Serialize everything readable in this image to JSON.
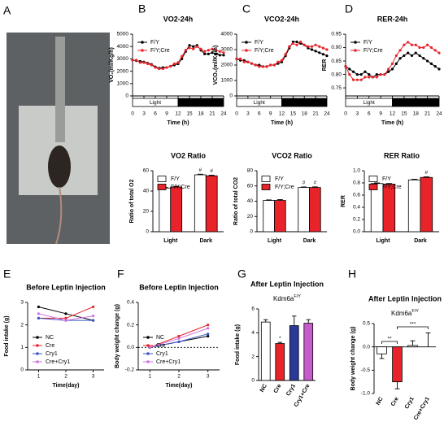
{
  "chart_data": [
    {
      "type": "image",
      "panel": "A"
    },
    {
      "type": "line",
      "panel": "B",
      "title": "VO2-24h",
      "xlabel": "Time (h)",
      "ylabel": "VO₂(ml/Kg/h)",
      "x": [
        0,
        1,
        2,
        3,
        4,
        5,
        6,
        7,
        8,
        9,
        10,
        11,
        12,
        13,
        14,
        15,
        16,
        17,
        18,
        19,
        20,
        21,
        22,
        23,
        24
      ],
      "xlim": [
        0,
        24
      ],
      "xticks": [
        0,
        3,
        6,
        9,
        12,
        15,
        18,
        21,
        24
      ],
      "ylim": [
        0,
        5000
      ],
      "yticks": [
        0,
        1000,
        2000,
        3000,
        4000,
        5000
      ],
      "phases": [
        {
          "label": "Light",
          "start": 0,
          "end": 12,
          "fill": "#ffffff"
        },
        {
          "label": "Dark",
          "start": 12,
          "end": 24,
          "fill": "#000000"
        }
      ],
      "legend": "upper left",
      "series": [
        {
          "name": "F/Y",
          "color": "#000000",
          "values": [
            2900,
            2850,
            2800,
            2750,
            2650,
            2550,
            2350,
            2250,
            2300,
            2300,
            2400,
            2500,
            2600,
            3000,
            3600,
            4100,
            4000,
            4100,
            3700,
            3400,
            3400,
            3500,
            3400,
            3300,
            3300
          ]
        },
        {
          "name": "F/Y;Cre",
          "color": "#e8232a",
          "values": [
            2900,
            2900,
            2700,
            2700,
            2600,
            2500,
            2300,
            2200,
            2200,
            2300,
            2400,
            2600,
            2700,
            3200,
            3700,
            3900,
            3800,
            4000,
            3800,
            3600,
            3700,
            3800,
            3700,
            3600,
            3500
          ]
        }
      ]
    },
    {
      "type": "line",
      "panel": "C",
      "title": "VCO2-24h",
      "xlabel": "Time (h)",
      "ylabel": "VCO₂(ml/Kg/h)",
      "x": [
        0,
        1,
        2,
        3,
        4,
        5,
        6,
        7,
        8,
        9,
        10,
        11,
        12,
        13,
        14,
        15,
        16,
        17,
        18,
        19,
        20,
        21,
        22,
        23,
        24
      ],
      "xlim": [
        0,
        24
      ],
      "xticks": [
        0,
        3,
        6,
        9,
        12,
        15,
        18,
        21,
        24
      ],
      "ylim": [
        0,
        4000
      ],
      "yticks": [
        0,
        1000,
        2000,
        3000,
        4000
      ],
      "phases": [
        {
          "label": "Light",
          "start": 0,
          "end": 12,
          "fill": "#ffffff"
        },
        {
          "label": "Dark",
          "start": 12,
          "end": 24,
          "fill": "#000000"
        }
      ],
      "legend": "upper left",
      "series": [
        {
          "name": "F/Y",
          "color": "#000000",
          "values": [
            2400,
            2300,
            2300,
            2200,
            2100,
            2000,
            2000,
            1900,
            1900,
            2000,
            2000,
            2100,
            2200,
            2600,
            3100,
            3500,
            3500,
            3400,
            3300,
            3100,
            3000,
            2900,
            2800,
            2700,
            2600
          ]
        },
        {
          "name": "F/Y;Cre",
          "color": "#e8232a",
          "values": [
            2400,
            2400,
            2200,
            2200,
            2100,
            2000,
            1900,
            1900,
            1900,
            2000,
            2000,
            2200,
            2300,
            2700,
            3200,
            3400,
            3300,
            3500,
            3300,
            3200,
            3200,
            3300,
            3200,
            3100,
            3000
          ]
        }
      ]
    },
    {
      "type": "line",
      "panel": "D",
      "title": "RER-24h",
      "xlabel": "Time (h)",
      "ylabel": "RER",
      "x": [
        0,
        1,
        2,
        3,
        4,
        5,
        6,
        7,
        8,
        9,
        10,
        11,
        12,
        13,
        14,
        15,
        16,
        17,
        18,
        19,
        20,
        21,
        22,
        23,
        24
      ],
      "xlim": [
        0,
        24
      ],
      "xticks": [
        0,
        3,
        6,
        9,
        12,
        15,
        18,
        21,
        24
      ],
      "ylim": [
        0.72,
        0.95
      ],
      "yticks": [
        0.75,
        {
          "value": 0.8,
          "label": "0.80"
        },
        0.85,
        {
          "value": 0.9,
          "label": "0.90"
        },
        0.95
      ],
      "phases": [
        {
          "label": "Light",
          "start": 0,
          "end": 12,
          "fill": "#ffffff"
        },
        {
          "label": "Dark",
          "start": 12,
          "end": 24,
          "fill": "#000000"
        }
      ],
      "legend": "upper left",
      "series": [
        {
          "name": "F/Y",
          "color": "#000000",
          "values": [
            0.83,
            0.82,
            0.81,
            0.8,
            0.8,
            0.81,
            0.8,
            0.79,
            0.8,
            0.8,
            0.8,
            0.81,
            0.82,
            0.84,
            0.86,
            0.87,
            0.88,
            0.87,
            0.88,
            0.87,
            0.86,
            0.85,
            0.84,
            0.83,
            0.82
          ]
        },
        {
          "name": "F/Y;Cre",
          "color": "#e8232a",
          "values": [
            0.83,
            0.8,
            0.78,
            0.78,
            0.78,
            0.79,
            0.79,
            0.79,
            0.79,
            0.8,
            0.8,
            0.82,
            0.84,
            0.87,
            0.89,
            0.91,
            0.92,
            0.91,
            0.91,
            0.9,
            0.9,
            0.91,
            0.9,
            0.89,
            0.88
          ]
        }
      ]
    },
    {
      "type": "bar",
      "title": "VO2 Ratio",
      "ylabel": "Ratio of total O2",
      "categories": [
        "Light",
        "Dark"
      ],
      "ylim": [
        0,
        60
      ],
      "yticks": [
        0,
        20,
        40,
        60
      ],
      "legend": "upper left",
      "series": [
        {
          "name": "F/Y",
          "color": "#ffffff",
          "values": [
            43,
            56
          ],
          "errors": [
            0.6,
            0.6
          ],
          "markers": [
            null,
            "#"
          ]
        },
        {
          "name": "F/Y;Cre",
          "color": "#e8232a",
          "values": [
            44,
            55
          ],
          "errors": [
            0.6,
            0.6
          ],
          "markers": [
            null,
            "#"
          ]
        }
      ]
    },
    {
      "type": "bar",
      "title": "VCO2 Ratio",
      "ylabel": "Ratio of total CO2",
      "categories": [
        "Light",
        "Dark"
      ],
      "ylim": [
        0,
        80
      ],
      "yticks": [
        0,
        20,
        40,
        60,
        80
      ],
      "legend": "upper left",
      "series": [
        {
          "name": "F/Y",
          "color": "#ffffff",
          "values": [
            41,
            58
          ],
          "errors": [
            0.7,
            0.7
          ],
          "markers": [
            null,
            "#"
          ]
        },
        {
          "name": "F/Y;Cre",
          "color": "#e8232a",
          "values": [
            41,
            58
          ],
          "errors": [
            1.2,
            0.8
          ],
          "markers": [
            null,
            "#"
          ]
        }
      ]
    },
    {
      "type": "bar",
      "title": "RER Ratio",
      "ylabel": "RER",
      "categories": [
        "Light",
        "Dark"
      ],
      "ylim": [
        0,
        1.0
      ],
      "yticks": [
        {
          "value": 0,
          "label": "0.0"
        },
        0.2,
        0.4,
        0.6,
        0.8,
        {
          "value": 1.0,
          "label": "1.0"
        }
      ],
      "legend": "upper left",
      "series": [
        {
          "name": "F/Y",
          "color": "#ffffff",
          "values": [
            0.79,
            0.85
          ],
          "errors": [
            0.01,
            0.01
          ],
          "markers": [
            null,
            null
          ]
        },
        {
          "name": "F/Y;Cre",
          "color": "#e8232a",
          "values": [
            0.78,
            0.89
          ],
          "errors": [
            0.01,
            0.01
          ],
          "markers": [
            null,
            "#"
          ]
        }
      ]
    },
    {
      "type": "line",
      "panel": "E",
      "title": "Before Leptin Injection",
      "xlabel": "Time(day)",
      "ylabel": "Food intake (g)",
      "x": [
        1,
        2,
        3
      ],
      "xlim": [
        0.6,
        3.4
      ],
      "xticks": [
        1,
        2,
        3
      ],
      "ylim": [
        0,
        3
      ],
      "yticks": [
        0,
        1,
        2,
        3
      ],
      "legend": "lower left",
      "series": [
        {
          "name": "NC",
          "color": "#000000",
          "values": [
            2.8,
            2.5,
            2.2
          ]
        },
        {
          "name": "Cre",
          "color": "#e8232a",
          "values": [
            2.3,
            2.3,
            2.8
          ]
        },
        {
          "name": "Cry1",
          "color": "#3a57c6",
          "values": [
            2.3,
            2.2,
            2.2
          ]
        },
        {
          "name": "Cre+Cry1",
          "color": "#d070e0",
          "values": [
            2.5,
            2.2,
            2.4
          ]
        }
      ]
    },
    {
      "type": "line",
      "panel": "F",
      "title": "Before Leptin Injection",
      "xlabel": "Time(day)",
      "ylabel": "Body weight change (g)",
      "x": [
        1,
        2,
        3
      ],
      "xlim": [
        0.6,
        3.4
      ],
      "xticks": [
        1,
        2,
        3
      ],
      "ylim": [
        -0.2,
        0.4
      ],
      "yticks": [
        -0.2,
        {
          "value": 0,
          "label": "0.0"
        },
        0.2,
        0.4
      ],
      "zero_line": true,
      "legend": "lower left",
      "series": [
        {
          "name": "NC",
          "color": "#000000",
          "values": [
            0,
            0.05,
            0.1
          ]
        },
        {
          "name": "Cre",
          "color": "#e8232a",
          "values": [
            0,
            0.1,
            0.2
          ]
        },
        {
          "name": "Cry1",
          "color": "#3a57c6",
          "values": [
            0,
            0.05,
            0.12
          ]
        },
        {
          "name": "Cre+Cry1",
          "color": "#d070e0",
          "values": [
            0,
            0.08,
            0.17
          ]
        }
      ]
    },
    {
      "type": "bar",
      "panel": "G",
      "title": "After Leptin Injection",
      "subtitle": "Kdm6a",
      "subtitle_superscript": "F/Y",
      "ylabel": "Food intake (g)",
      "categories": [
        "NC",
        "Cre",
        "Cry1",
        "Cry1+Cre"
      ],
      "xtick_rotation": -60,
      "ylim": [
        0,
        6
      ],
      "yticks": [
        0,
        2,
        4,
        6
      ],
      "values": [
        4.9,
        3.1,
        4.6,
        4.8
      ],
      "errors": [
        0.2,
        0.1,
        0.8,
        0.3
      ],
      "markers": [
        null,
        "*",
        null,
        null
      ],
      "colors": [
        "#ffffff",
        "#e8232a",
        "#2b3a9a",
        "#c55ec8"
      ]
    },
    {
      "type": "bar",
      "panel": "H",
      "title": "After Leptin Injection",
      "subtitle": "Kdm6a",
      "subtitle_superscript": "F/Y",
      "ylabel": "Body weight change (g)",
      "categories": [
        "NC",
        "Cre",
        "Cry1",
        "Cre+Cry1"
      ],
      "xtick_rotation": -60,
      "ylim": [
        -1.0,
        0.5
      ],
      "yticks": [
        {
          "value": -1.0,
          "label": "-1.0"
        },
        -0.5,
        {
          "value": 0,
          "label": "0.0"
        },
        0.5
      ],
      "values": [
        -0.15,
        -0.75,
        0.03,
        0
      ],
      "errors": [
        0.1,
        0.15,
        0.1,
        0.3
      ],
      "markers": [
        null,
        null,
        null,
        null
      ],
      "colors": [
        "#ffffff",
        "#e8232a",
        "#ffffff",
        "#ffffff"
      ],
      "brackets": [
        {
          "from": 0,
          "to": 1,
          "text": "**"
        },
        {
          "from": 1,
          "to": 3,
          "text": "***"
        }
      ]
    }
  ]
}
